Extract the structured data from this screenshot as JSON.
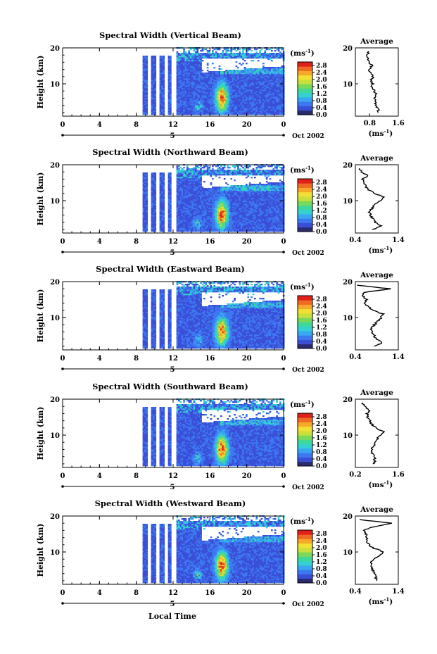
{
  "chart_data": [
    {
      "type": "heatmap",
      "title": "Spectral Width (Vertical Beam)",
      "xticks": [
        "0",
        "4",
        "8",
        "12",
        "16",
        "20",
        "0"
      ],
      "xlim": [
        0,
        24
      ],
      "day_marker": "5",
      "date_label": "Oct 2002",
      "ylabel": "Height (km)",
      "yticks": [
        "20",
        "10"
      ],
      "ylim": [
        1,
        20
      ],
      "colorbar": {
        "unit": "(ms",
        "unit_sup": "-1",
        "unit_close": ")",
        "ticks": [
          "2.8",
          "2.4",
          "2.0",
          "1.6",
          "1.2",
          "0.8",
          "0.4",
          "0.0"
        ],
        "range": [
          0,
          3.0
        ]
      },
      "average": {
        "title": "Average",
        "xticks": [
          "0.8",
          "1.6"
        ],
        "xlim": [
          0.4,
          1.6
        ],
        "xlabel": "(ms",
        "xlabel_sup": "-1",
        "xlabel_close": ")",
        "height_km": [
          2,
          3,
          4,
          5,
          6,
          7,
          8,
          9,
          10,
          11,
          12,
          13,
          14,
          15,
          16,
          17,
          18,
          19
        ],
        "width_ms": [
          1.02,
          1.05,
          0.96,
          0.98,
          0.94,
          0.97,
          0.93,
          0.86,
          0.88,
          0.82,
          0.9,
          0.82,
          0.78,
          0.86,
          0.8,
          0.74,
          0.72,
          0.78
        ]
      }
    },
    {
      "type": "heatmap",
      "title": "Spectral Width (Northward Beam)",
      "xticks": [
        "0",
        "4",
        "8",
        "12",
        "16",
        "20",
        "0"
      ],
      "xlim": [
        0,
        24
      ],
      "day_marker": "5",
      "date_label": "Oct 2002",
      "ylabel": "Height (km)",
      "yticks": [
        "20",
        "10"
      ],
      "ylim": [
        1,
        20
      ],
      "colorbar": {
        "unit": "(ms",
        "unit_sup": "-1",
        "unit_close": ")",
        "ticks": [
          "2.8",
          "2.4",
          "2.0",
          "1.6",
          "1.2",
          "0.8",
          "0.4",
          "0.0"
        ],
        "range": [
          0,
          3.0
        ]
      },
      "average": {
        "title": "Average",
        "xticks": [
          "0.4",
          "1.4"
        ],
        "xlim": [
          0.4,
          1.4
        ],
        "xlabel": "(ms",
        "xlabel_sup": "-1",
        "xlabel_close": ")",
        "height_km": [
          2,
          3,
          4,
          5,
          6,
          7,
          8,
          9,
          10,
          11,
          12,
          13,
          14,
          15,
          16,
          17,
          18,
          19
        ],
        "width_ms": [
          0.82,
          0.98,
          0.86,
          0.8,
          0.76,
          0.72,
          0.8,
          0.86,
          0.98,
          1.08,
          0.84,
          0.72,
          0.64,
          0.62,
          0.58,
          0.7,
          0.54,
          0.5
        ]
      }
    },
    {
      "type": "heatmap",
      "title": "Spectral Width (Eastward Beam)",
      "xticks": [
        "0",
        "4",
        "8",
        "12",
        "16",
        "20",
        "0"
      ],
      "xlim": [
        0,
        24
      ],
      "day_marker": "5",
      "date_label": "Oct 2002",
      "ylabel": "Height (km)",
      "yticks": [
        "20",
        "10"
      ],
      "ylim": [
        1,
        20
      ],
      "colorbar": {
        "unit": "(ms",
        "unit_sup": "-1",
        "unit_close": ")",
        "ticks": [
          "2.8",
          "2.4",
          "2.0",
          "1.6",
          "1.2",
          "0.8",
          "0.4",
          "0.0"
        ],
        "range": [
          0,
          3.0
        ]
      },
      "average": {
        "title": "Average",
        "xticks": [
          "0.4",
          "1.4"
        ],
        "xlim": [
          0.4,
          1.4
        ],
        "xlabel": "",
        "xlabel_sup": "",
        "xlabel_close": "",
        "height_km": [
          2,
          3,
          4,
          5,
          6,
          7,
          8,
          9,
          10,
          11,
          12,
          13,
          14,
          15,
          16,
          17,
          18,
          19
        ],
        "width_ms": [
          0.86,
          1.02,
          0.9,
          0.84,
          0.8,
          0.76,
          0.84,
          0.92,
          1.0,
          1.04,
          0.8,
          0.7,
          0.62,
          0.66,
          0.56,
          0.6,
          1.2,
          0.44
        ]
      }
    },
    {
      "type": "heatmap",
      "title": "Spectral Width (Southward Beam)",
      "xticks": [
        "0",
        "4",
        "8",
        "12",
        "16",
        "20",
        "0"
      ],
      "xlim": [
        0,
        24
      ],
      "day_marker": "5",
      "date_label": "Oct 2002",
      "ylabel": "Height (km)",
      "yticks": [
        "20",
        "10"
      ],
      "ylim": [
        1,
        20
      ],
      "colorbar": {
        "unit": "(ms",
        "unit_sup": "-1",
        "unit_close": ")",
        "ticks": [
          "2.8",
          "2.4",
          "2.0",
          "1.6",
          "1.2",
          "0.8",
          "0.4",
          "0.0"
        ],
        "range": [
          0,
          3.0
        ]
      },
      "average": {
        "title": "Average",
        "xticks": [
          "0.2",
          "1.6"
        ],
        "xlim": [
          0.2,
          1.6
        ],
        "xlabel": "(ms",
        "xlabel_sup": "-1",
        "xlabel_close": ")",
        "height_km": [
          2,
          3,
          4,
          5,
          6,
          7,
          8,
          9,
          10,
          11,
          12,
          13,
          14,
          15,
          16,
          17,
          18,
          19
        ],
        "width_ms": [
          0.78,
          0.84,
          0.8,
          0.76,
          0.74,
          0.78,
          0.86,
          0.92,
          1.0,
          1.12,
          0.86,
          0.74,
          0.66,
          0.6,
          0.58,
          0.66,
          0.5,
          0.44
        ]
      }
    },
    {
      "type": "heatmap",
      "title": "Spectral Width (Westward Beam)",
      "xticks": [
        "0",
        "4",
        "8",
        "12",
        "16",
        "20",
        "0"
      ],
      "xlim": [
        0,
        24
      ],
      "day_marker": "5",
      "date_label": "Oct 2002",
      "ylabel": "Height (km)",
      "yticks": [
        "20",
        "10"
      ],
      "ylim": [
        1,
        20
      ],
      "colorbar": {
        "unit": "(ms",
        "unit_sup": "-1",
        "unit_close": ")",
        "ticks": [
          "2.8",
          "2.4",
          "2.0",
          "1.6",
          "1.2",
          "0.8",
          "0.4",
          "0.0"
        ],
        "range": [
          0,
          3.0
        ]
      },
      "average": {
        "title": "Average",
        "xticks": [
          "0.4",
          "1.4"
        ],
        "xlim": [
          0.4,
          1.4
        ],
        "xlabel": "(ms",
        "xlabel_sup": "-1",
        "xlabel_close": ")",
        "height_km": [
          2,
          3,
          4,
          5,
          6,
          7,
          8,
          9,
          10,
          11,
          12,
          13,
          14,
          15,
          16,
          17,
          18,
          19
        ],
        "width_ms": [
          0.9,
          0.88,
          0.84,
          0.8,
          0.78,
          0.76,
          0.82,
          0.96,
          1.06,
          0.84,
          0.72,
          0.68,
          0.66,
          0.64,
          0.6,
          0.82,
          1.28,
          0.5
        ]
      }
    }
  ],
  "figure": {
    "xlabel": "Local Time"
  },
  "colors": {
    "scale": [
      "#2a2a6e",
      "#3a4fd8",
      "#3d78f0",
      "#39a8f0",
      "#33d1d1",
      "#3fd89a",
      "#7ad85a",
      "#c9e03c",
      "#f2e035",
      "#f5a82a",
      "#ef6a22",
      "#e0201a"
    ]
  }
}
